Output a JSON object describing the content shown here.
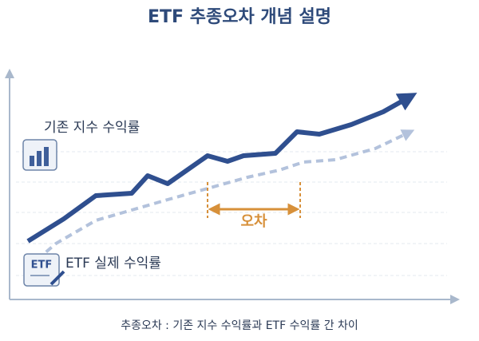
{
  "title": "ETF 추종오차 개념 설명",
  "series_labels": {
    "index": "기존 지수 수익률",
    "etf": "ETF 실제 수익률"
  },
  "error_label": "오차",
  "icon_text": "ETF",
  "caption": "추종오차 : 기존 지수 수익률과 ETF 수익률 간 차이"
}
